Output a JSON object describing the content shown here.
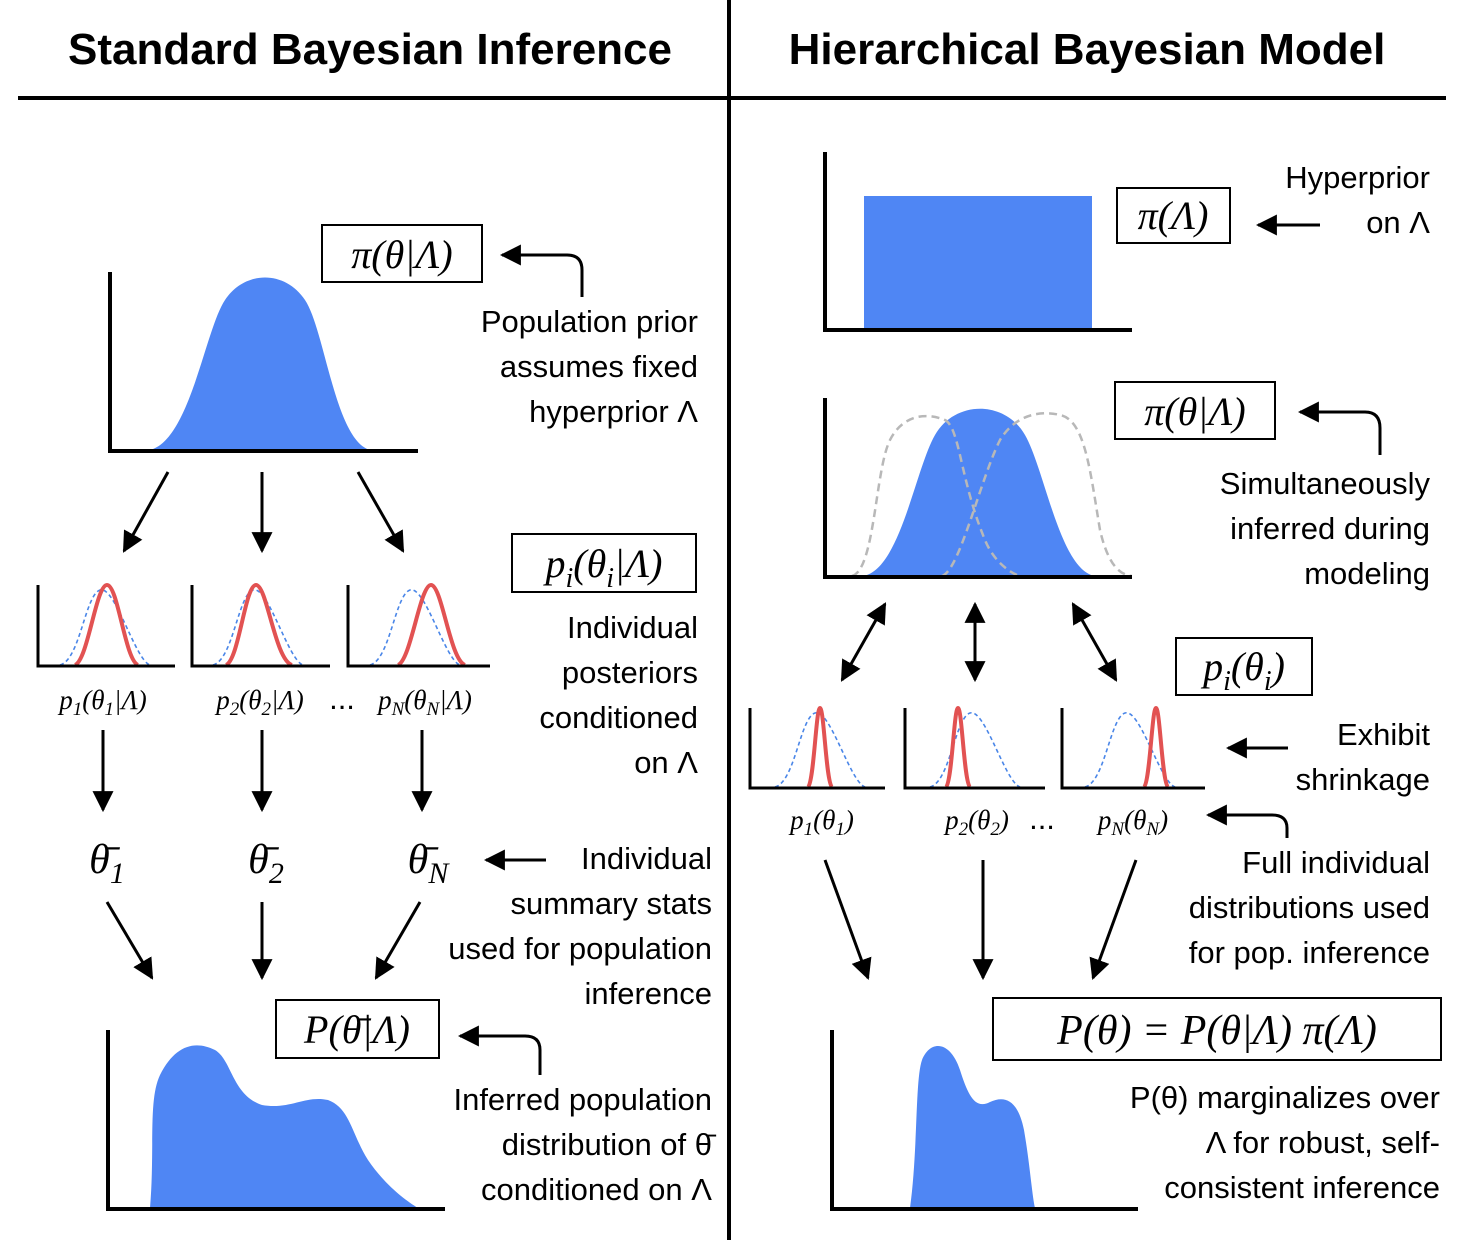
{
  "left": {
    "title": "Standard Bayesian Inference",
    "prior_formula": "π(θ|Λ)",
    "prior_note": [
      "Population prior",
      "assumes fixed",
      "hyperprior Λ"
    ],
    "posterior_formula": "p_i(θ_i|Λ)",
    "posterior_labels": [
      "p_1(θ_1|Λ)",
      "p_2(θ_2|Λ)",
      "p_N(θ_N|Λ)"
    ],
    "ellipsis": "...",
    "posterior_note": [
      "Individual",
      "posteriors",
      "conditioned",
      "on Λ"
    ],
    "summary_stats": [
      "θ̄_1",
      "θ̄_2",
      "θ̄_N"
    ],
    "summary_note": [
      "Individual",
      "summary stats",
      "used for population",
      "inference"
    ],
    "population_formula": "P(θ̄|Λ)",
    "population_note": [
      "Inferred population",
      "distribution of θ̄",
      "conditioned on Λ"
    ]
  },
  "right": {
    "title": "Hierarchical Bayesian Model",
    "hyperprior_formula": "π(Λ)",
    "hyperprior_note": [
      "Hyperprior",
      "on Λ"
    ],
    "prior_formula": "π(θ|Λ)",
    "prior_note": [
      "Simultaneously",
      "inferred during",
      "modeling"
    ],
    "posterior_formula": "p_i(θ_i)",
    "posterior_labels": [
      "p_1(θ_1)",
      "p_2(θ_2)",
      "p_N(θ_N)"
    ],
    "ellipsis": "...",
    "shrinkage_note": [
      "Exhibit",
      "shrinkage"
    ],
    "full_dist_note": [
      "Full individual",
      "distributions used",
      "for pop. inference"
    ],
    "population_formula": "P(θ) = P(θ|Λ) π(Λ)",
    "population_note": [
      "P(θ) marginalizes over",
      "Λ for robust, self-",
      "consistent inference"
    ]
  },
  "colors": {
    "fill": "#4f86f4",
    "posterior": "#e25252",
    "prior_dash": "#4a86e8",
    "alt_prior": "#b8b8b8"
  }
}
